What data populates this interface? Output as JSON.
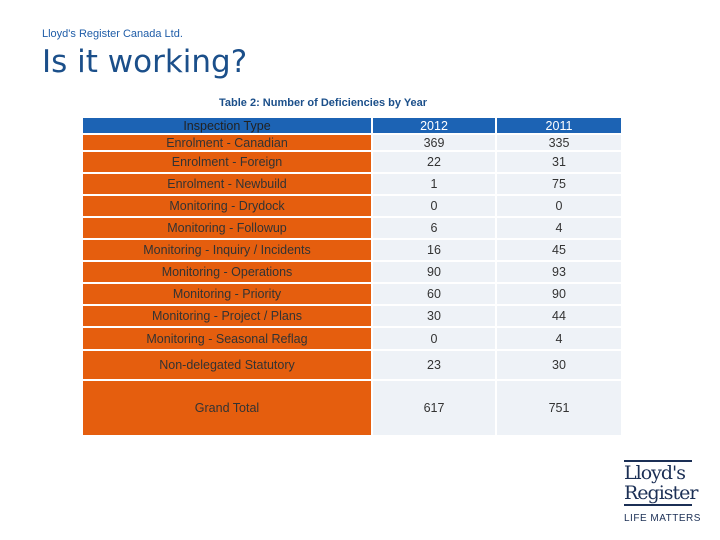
{
  "header": {
    "company": "Lloyd's Register Canada Ltd.",
    "title": "Is it working?"
  },
  "table": {
    "caption": "Table 2: Number of Deficiencies by Year",
    "col_type": "Inspection Type",
    "col_2012": "2012",
    "col_2011": "2011",
    "rows": [
      {
        "type": "Enrolment - Canadian",
        "y2012": "369",
        "y2011": "335"
      },
      {
        "type": "Enrolment - Foreign",
        "y2012": "22",
        "y2011": "31"
      },
      {
        "type": "Enrolment - Newbuild",
        "y2012": "1",
        "y2011": "75"
      },
      {
        "type": "Monitoring - Drydock",
        "y2012": "0",
        "y2011": "0"
      },
      {
        "type": "Monitoring - Followup",
        "y2012": "6",
        "y2011": "4"
      },
      {
        "type": "Monitoring - Inquiry / Incidents",
        "y2012": "16",
        "y2011": "45"
      },
      {
        "type": "Monitoring - Operations",
        "y2012": "90",
        "y2011": "93"
      },
      {
        "type": "Monitoring - Priority",
        "y2012": "60",
        "y2011": "90"
      },
      {
        "type": "Monitoring - Project / Plans",
        "y2012": "30",
        "y2011": "44"
      },
      {
        "type": "Monitoring - Seasonal Reflag",
        "y2012": "0",
        "y2011": "4"
      },
      {
        "type": "Non-delegated Statutory",
        "y2012": "23",
        "y2011": "30"
      },
      {
        "type": "Grand Total",
        "y2012": "617",
        "y2011": "751"
      }
    ]
  },
  "logo": {
    "line1": "Lloyd's",
    "line2": "Register",
    "tagline": "LIFE MATTERS"
  }
}
